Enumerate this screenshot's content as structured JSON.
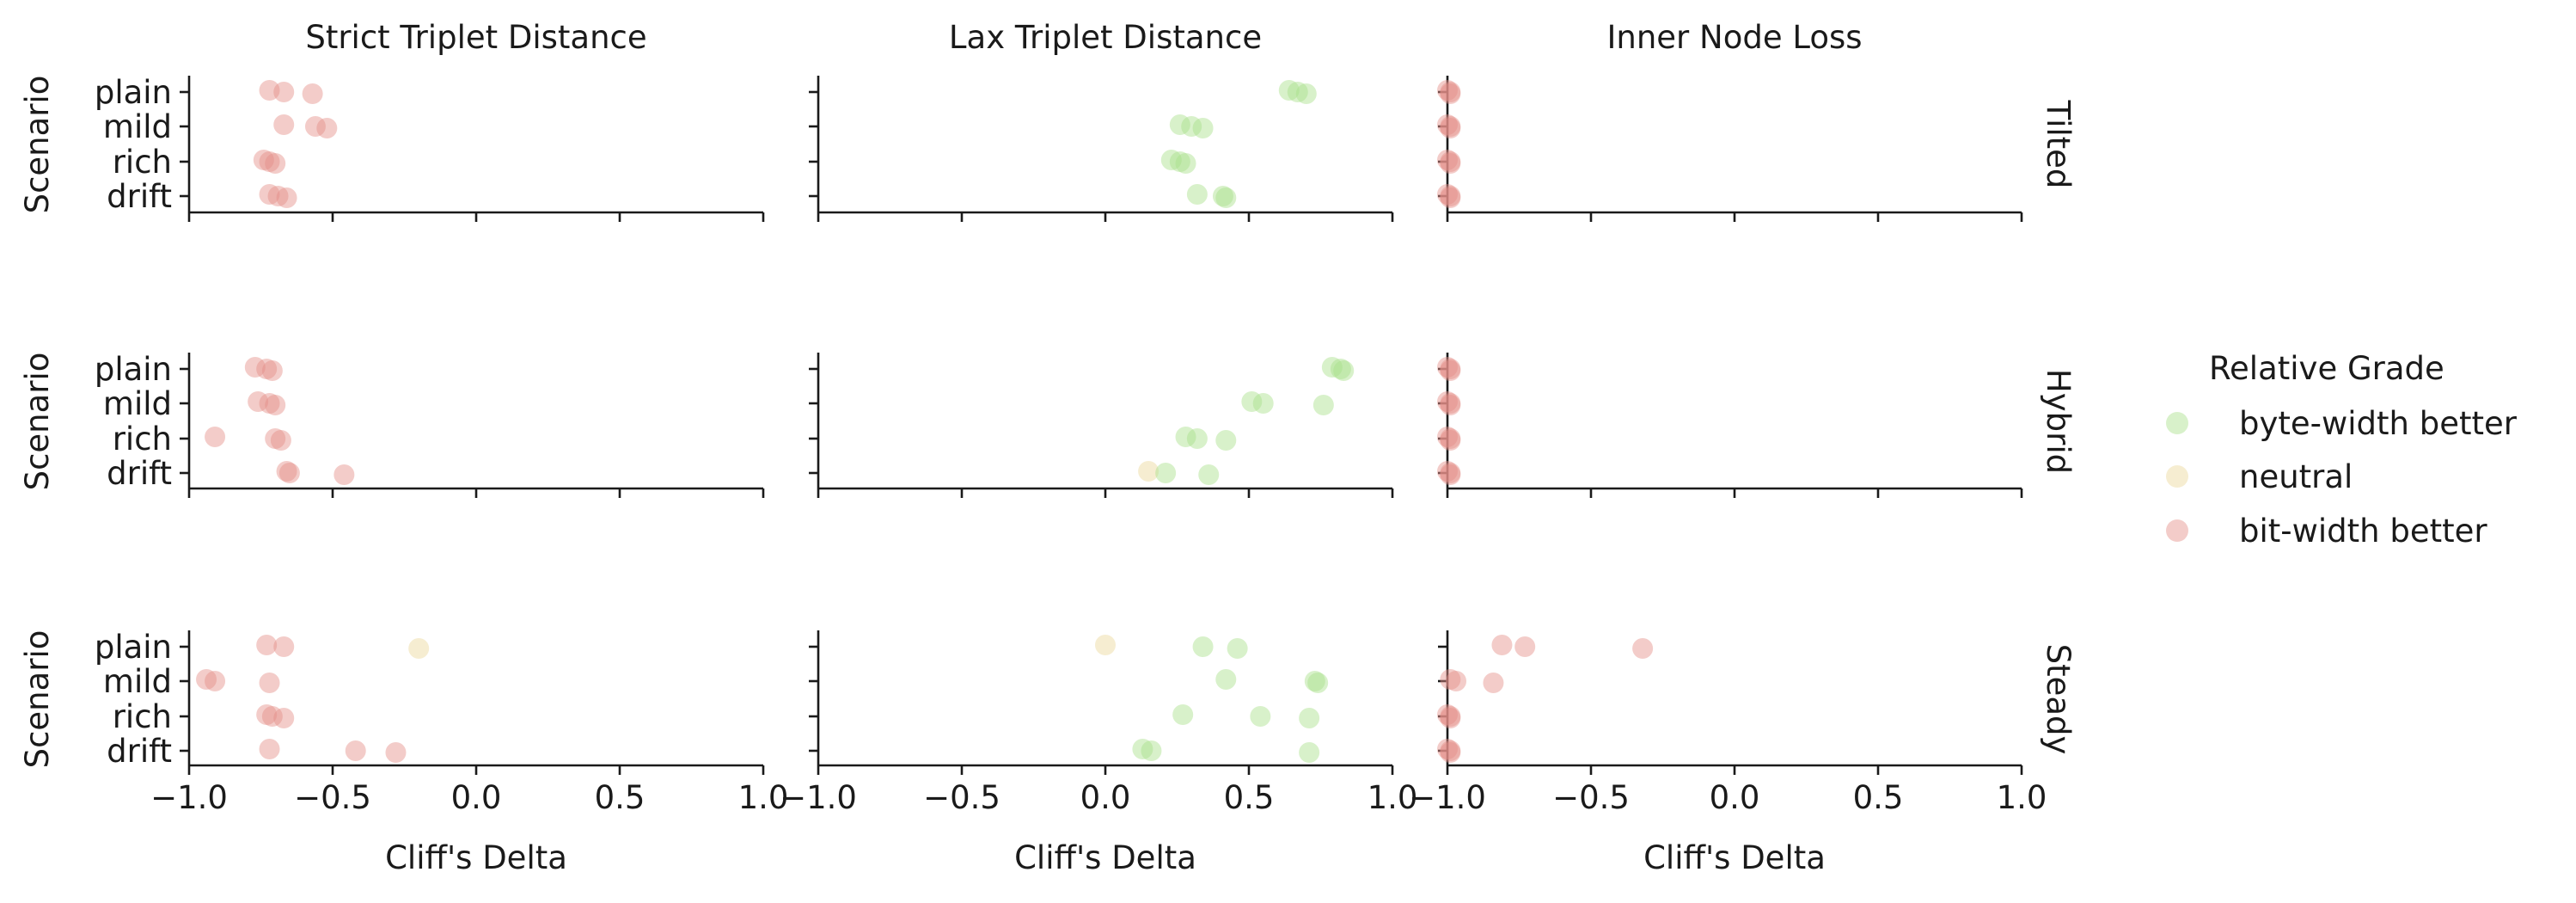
{
  "chart_data": {
    "type": "scatter",
    "columns": [
      "Strict Triplet Distance",
      "Lax Triplet Distance",
      "Inner Node Loss"
    ],
    "rows": [
      "Tilted",
      "Hybrid",
      "Steady"
    ],
    "categories": [
      "plain",
      "mild",
      "rich",
      "drift"
    ],
    "ylabel": "Scenario",
    "xlabel": "Cliff's Delta",
    "xlim": [
      -1.0,
      1.0
    ],
    "xticks": [
      -1.0,
      -0.5,
      0.0,
      0.5,
      1.0
    ],
    "xtick_labels": [
      "−1.0",
      "−0.5",
      "0.0",
      "0.5",
      "1.0"
    ],
    "grid": false,
    "legend": {
      "title": "Relative Grade",
      "position": "right",
      "entries": [
        {
          "key": "byte",
          "label": "byte-width better",
          "color": "#a8e08a"
        },
        {
          "key": "neutral",
          "label": "neutral",
          "color": "#ead79a"
        },
        {
          "key": "bit",
          "label": "bit-width better",
          "color": "#e48f88"
        }
      ]
    },
    "panels": [
      {
        "row": "Tilted",
        "column": "Strict Triplet Distance",
        "points": [
          {
            "y": "plain",
            "x": -0.72,
            "grade": "bit"
          },
          {
            "y": "plain",
            "x": -0.67,
            "grade": "bit"
          },
          {
            "y": "plain",
            "x": -0.57,
            "grade": "bit"
          },
          {
            "y": "mild",
            "x": -0.67,
            "grade": "bit"
          },
          {
            "y": "mild",
            "x": -0.56,
            "grade": "bit"
          },
          {
            "y": "mild",
            "x": -0.52,
            "grade": "bit"
          },
          {
            "y": "rich",
            "x": -0.74,
            "grade": "bit"
          },
          {
            "y": "rich",
            "x": -0.72,
            "grade": "bit"
          },
          {
            "y": "rich",
            "x": -0.7,
            "grade": "bit"
          },
          {
            "y": "drift",
            "x": -0.72,
            "grade": "bit"
          },
          {
            "y": "drift",
            "x": -0.69,
            "grade": "bit"
          },
          {
            "y": "drift",
            "x": -0.66,
            "grade": "bit"
          }
        ]
      },
      {
        "row": "Tilted",
        "column": "Lax Triplet Distance",
        "points": [
          {
            "y": "plain",
            "x": 0.64,
            "grade": "byte"
          },
          {
            "y": "plain",
            "x": 0.67,
            "grade": "byte"
          },
          {
            "y": "plain",
            "x": 0.7,
            "grade": "byte"
          },
          {
            "y": "mild",
            "x": 0.26,
            "grade": "byte"
          },
          {
            "y": "mild",
            "x": 0.3,
            "grade": "byte"
          },
          {
            "y": "mild",
            "x": 0.34,
            "grade": "byte"
          },
          {
            "y": "rich",
            "x": 0.23,
            "grade": "byte"
          },
          {
            "y": "rich",
            "x": 0.26,
            "grade": "byte"
          },
          {
            "y": "rich",
            "x": 0.28,
            "grade": "byte"
          },
          {
            "y": "drift",
            "x": 0.32,
            "grade": "byte"
          },
          {
            "y": "drift",
            "x": 0.41,
            "grade": "byte"
          },
          {
            "y": "drift",
            "x": 0.42,
            "grade": "byte"
          }
        ]
      },
      {
        "row": "Tilted",
        "column": "Inner Node Loss",
        "points": [
          {
            "y": "plain",
            "x": -1.0,
            "grade": "bit"
          },
          {
            "y": "plain",
            "x": -0.99,
            "grade": "bit"
          },
          {
            "y": "plain",
            "x": -0.99,
            "grade": "bit"
          },
          {
            "y": "mild",
            "x": -1.0,
            "grade": "bit"
          },
          {
            "y": "mild",
            "x": -0.99,
            "grade": "bit"
          },
          {
            "y": "mild",
            "x": -0.99,
            "grade": "bit"
          },
          {
            "y": "rich",
            "x": -1.0,
            "grade": "bit"
          },
          {
            "y": "rich",
            "x": -0.99,
            "grade": "bit"
          },
          {
            "y": "rich",
            "x": -0.99,
            "grade": "bit"
          },
          {
            "y": "drift",
            "x": -1.0,
            "grade": "bit"
          },
          {
            "y": "drift",
            "x": -0.99,
            "grade": "bit"
          },
          {
            "y": "drift",
            "x": -0.99,
            "grade": "bit"
          }
        ]
      },
      {
        "row": "Hybrid",
        "column": "Strict Triplet Distance",
        "points": [
          {
            "y": "plain",
            "x": -0.77,
            "grade": "bit"
          },
          {
            "y": "plain",
            "x": -0.73,
            "grade": "bit"
          },
          {
            "y": "plain",
            "x": -0.71,
            "grade": "bit"
          },
          {
            "y": "mild",
            "x": -0.76,
            "grade": "bit"
          },
          {
            "y": "mild",
            "x": -0.72,
            "grade": "bit"
          },
          {
            "y": "mild",
            "x": -0.7,
            "grade": "bit"
          },
          {
            "y": "rich",
            "x": -0.91,
            "grade": "bit"
          },
          {
            "y": "rich",
            "x": -0.7,
            "grade": "bit"
          },
          {
            "y": "rich",
            "x": -0.68,
            "grade": "bit"
          },
          {
            "y": "drift",
            "x": -0.66,
            "grade": "bit"
          },
          {
            "y": "drift",
            "x": -0.65,
            "grade": "bit"
          },
          {
            "y": "drift",
            "x": -0.46,
            "grade": "bit"
          }
        ]
      },
      {
        "row": "Hybrid",
        "column": "Lax Triplet Distance",
        "points": [
          {
            "y": "plain",
            "x": 0.79,
            "grade": "byte"
          },
          {
            "y": "plain",
            "x": 0.82,
            "grade": "byte"
          },
          {
            "y": "plain",
            "x": 0.83,
            "grade": "byte"
          },
          {
            "y": "mild",
            "x": 0.51,
            "grade": "byte"
          },
          {
            "y": "mild",
            "x": 0.55,
            "grade": "byte"
          },
          {
            "y": "mild",
            "x": 0.76,
            "grade": "byte"
          },
          {
            "y": "rich",
            "x": 0.28,
            "grade": "byte"
          },
          {
            "y": "rich",
            "x": 0.32,
            "grade": "byte"
          },
          {
            "y": "rich",
            "x": 0.42,
            "grade": "byte"
          },
          {
            "y": "drift",
            "x": 0.15,
            "grade": "neutral"
          },
          {
            "y": "drift",
            "x": 0.21,
            "grade": "byte"
          },
          {
            "y": "drift",
            "x": 0.36,
            "grade": "byte"
          }
        ]
      },
      {
        "row": "Hybrid",
        "column": "Inner Node Loss",
        "points": [
          {
            "y": "plain",
            "x": -1.0,
            "grade": "bit"
          },
          {
            "y": "plain",
            "x": -0.99,
            "grade": "bit"
          },
          {
            "y": "plain",
            "x": -0.99,
            "grade": "bit"
          },
          {
            "y": "mild",
            "x": -1.0,
            "grade": "bit"
          },
          {
            "y": "mild",
            "x": -0.99,
            "grade": "bit"
          },
          {
            "y": "mild",
            "x": -0.99,
            "grade": "bit"
          },
          {
            "y": "rich",
            "x": -1.0,
            "grade": "bit"
          },
          {
            "y": "rich",
            "x": -0.99,
            "grade": "bit"
          },
          {
            "y": "rich",
            "x": -0.99,
            "grade": "bit"
          },
          {
            "y": "drift",
            "x": -1.0,
            "grade": "bit"
          },
          {
            "y": "drift",
            "x": -0.99,
            "grade": "bit"
          },
          {
            "y": "drift",
            "x": -0.99,
            "grade": "bit"
          }
        ]
      },
      {
        "row": "Steady",
        "column": "Strict Triplet Distance",
        "points": [
          {
            "y": "plain",
            "x": -0.73,
            "grade": "bit"
          },
          {
            "y": "plain",
            "x": -0.67,
            "grade": "bit"
          },
          {
            "y": "plain",
            "x": -0.2,
            "grade": "neutral"
          },
          {
            "y": "mild",
            "x": -0.94,
            "grade": "bit"
          },
          {
            "y": "mild",
            "x": -0.91,
            "grade": "bit"
          },
          {
            "y": "mild",
            "x": -0.72,
            "grade": "bit"
          },
          {
            "y": "rich",
            "x": -0.73,
            "grade": "bit"
          },
          {
            "y": "rich",
            "x": -0.71,
            "grade": "bit"
          },
          {
            "y": "rich",
            "x": -0.67,
            "grade": "bit"
          },
          {
            "y": "drift",
            "x": -0.72,
            "grade": "bit"
          },
          {
            "y": "drift",
            "x": -0.42,
            "grade": "bit"
          },
          {
            "y": "drift",
            "x": -0.28,
            "grade": "bit"
          }
        ]
      },
      {
        "row": "Steady",
        "column": "Lax Triplet Distance",
        "points": [
          {
            "y": "plain",
            "x": 0.0,
            "grade": "neutral"
          },
          {
            "y": "plain",
            "x": 0.34,
            "grade": "byte"
          },
          {
            "y": "plain",
            "x": 0.46,
            "grade": "byte"
          },
          {
            "y": "mild",
            "x": 0.42,
            "grade": "byte"
          },
          {
            "y": "mild",
            "x": 0.73,
            "grade": "byte"
          },
          {
            "y": "mild",
            "x": 0.74,
            "grade": "byte"
          },
          {
            "y": "rich",
            "x": 0.27,
            "grade": "byte"
          },
          {
            "y": "rich",
            "x": 0.54,
            "grade": "byte"
          },
          {
            "y": "rich",
            "x": 0.71,
            "grade": "byte"
          },
          {
            "y": "drift",
            "x": 0.13,
            "grade": "byte"
          },
          {
            "y": "drift",
            "x": 0.16,
            "grade": "byte"
          },
          {
            "y": "drift",
            "x": 0.71,
            "grade": "byte"
          }
        ]
      },
      {
        "row": "Steady",
        "column": "Inner Node Loss",
        "points": [
          {
            "y": "plain",
            "x": -0.81,
            "grade": "bit"
          },
          {
            "y": "plain",
            "x": -0.73,
            "grade": "bit"
          },
          {
            "y": "plain",
            "x": -0.32,
            "grade": "bit"
          },
          {
            "y": "mild",
            "x": -0.99,
            "grade": "bit"
          },
          {
            "y": "mild",
            "x": -0.97,
            "grade": "bit"
          },
          {
            "y": "mild",
            "x": -0.84,
            "grade": "bit"
          },
          {
            "y": "rich",
            "x": -1.0,
            "grade": "bit"
          },
          {
            "y": "rich",
            "x": -0.99,
            "grade": "bit"
          },
          {
            "y": "rich",
            "x": -0.99,
            "grade": "bit"
          },
          {
            "y": "drift",
            "x": -1.0,
            "grade": "bit"
          },
          {
            "y": "drift",
            "x": -0.99,
            "grade": "bit"
          },
          {
            "y": "drift",
            "x": -0.99,
            "grade": "bit"
          }
        ]
      }
    ]
  }
}
